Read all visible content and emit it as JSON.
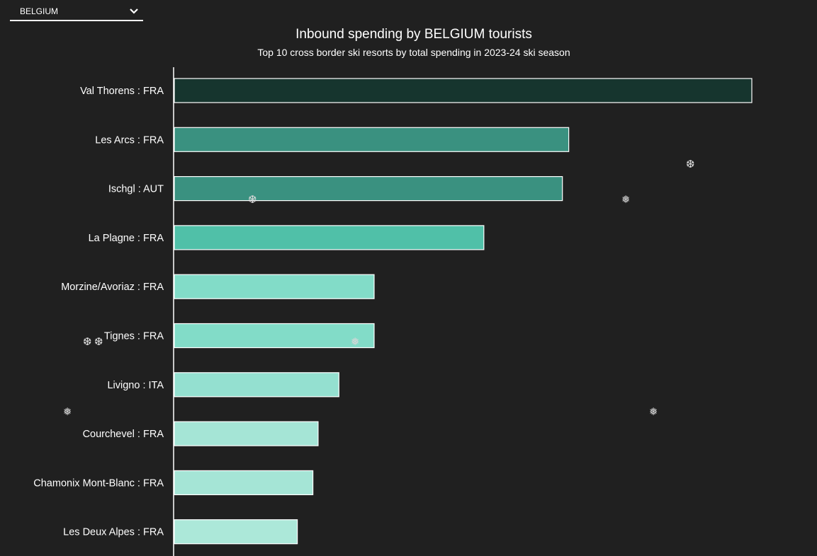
{
  "selector": {
    "selected": "BELGIUM",
    "icon": "chevron-down-icon"
  },
  "chart_data": {
    "type": "bar",
    "orientation": "horizontal",
    "title": "Inbound spending by BELGIUM tourists",
    "subtitle": "Top 10 cross border ski resorts by total spending in 2023-24 ski season",
    "xlabel": "",
    "ylabel": "",
    "value_units": "relative (Val Thorens = 100)",
    "xlim": [
      0,
      100
    ],
    "grid": false,
    "categories": [
      "Val Thorens : FRA",
      "Les Arcs : FRA",
      "Ischgl : AUT",
      "La Plagne : FRA",
      "Morzine/Avoriaz : FRA",
      "Tignes : FRA",
      "Livigno : ITA",
      "Courchevel : FRA",
      "Chamonix Mont-Blanc : FRA",
      "Les Deux Alpes : FRA"
    ],
    "values": [
      100,
      68.3,
      67.2,
      53.6,
      34.6,
      34.6,
      28.5,
      24.9,
      24.0,
      21.3
    ],
    "colors": [
      "#16352e",
      "#3a9180",
      "#3a9180",
      "#50c0a8",
      "#82dcc8",
      "#82dcc8",
      "#94e0d0",
      "#a5e5d6",
      "#a5e5d6",
      "#ace8d9"
    ]
  },
  "decorations": {
    "snowflake_icon": "snowflake-icon",
    "snowflakes": [
      "❆",
      "❅",
      "❆",
      "❆",
      "❆",
      "❅",
      "❅",
      "❅"
    ]
  }
}
